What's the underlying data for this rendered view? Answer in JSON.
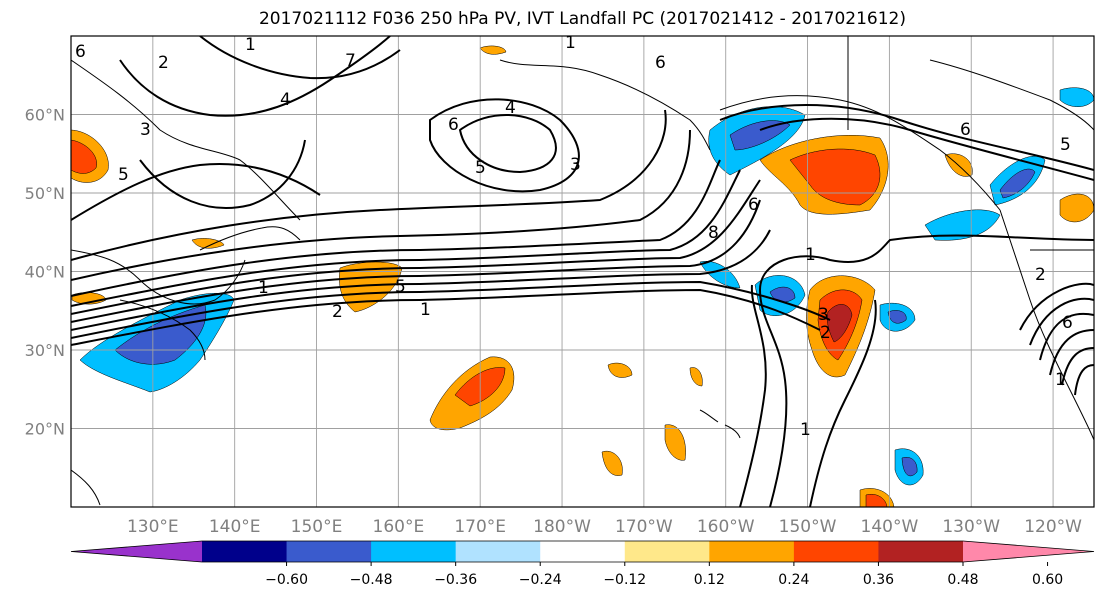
{
  "title": "2017021112 F036 250 hPa PV, IVT Landfall PC (2017021412 - 2017021612)",
  "map": {
    "lon_range": [
      120,
      245
    ],
    "lat_range": [
      10,
      70
    ],
    "lat_labels": [
      "20°N",
      "30°N",
      "40°N",
      "50°N",
      "60°N"
    ],
    "lat_values": [
      20,
      30,
      40,
      50,
      60
    ],
    "lon_labels": [
      "130°E",
      "140°E",
      "150°E",
      "160°E",
      "170°E",
      "180°W",
      "170°W",
      "160°W",
      "150°W",
      "140°W",
      "130°W",
      "120°W"
    ],
    "lon_values": [
      130,
      140,
      150,
      160,
      170,
      180,
      190,
      200,
      210,
      220,
      230,
      240
    ],
    "gridlines": true,
    "contour_labels": [
      "1",
      "2",
      "3",
      "4",
      "5",
      "6",
      "7",
      "8"
    ]
  },
  "colorbar": {
    "ticks": [
      "−0.60",
      "−0.48",
      "−0.36",
      "−0.24",
      "−0.12",
      "0.12",
      "0.24",
      "0.36",
      "0.48",
      "0.60"
    ],
    "colors": [
      "#9932cc",
      "#00008b",
      "#3a5bcd",
      "#00bfff",
      "#b0e2ff",
      "#ffffff",
      "#ffe88a",
      "#ffa500",
      "#ff4500",
      "#b22222",
      "#ff88aa"
    ],
    "extend": "both"
  }
}
